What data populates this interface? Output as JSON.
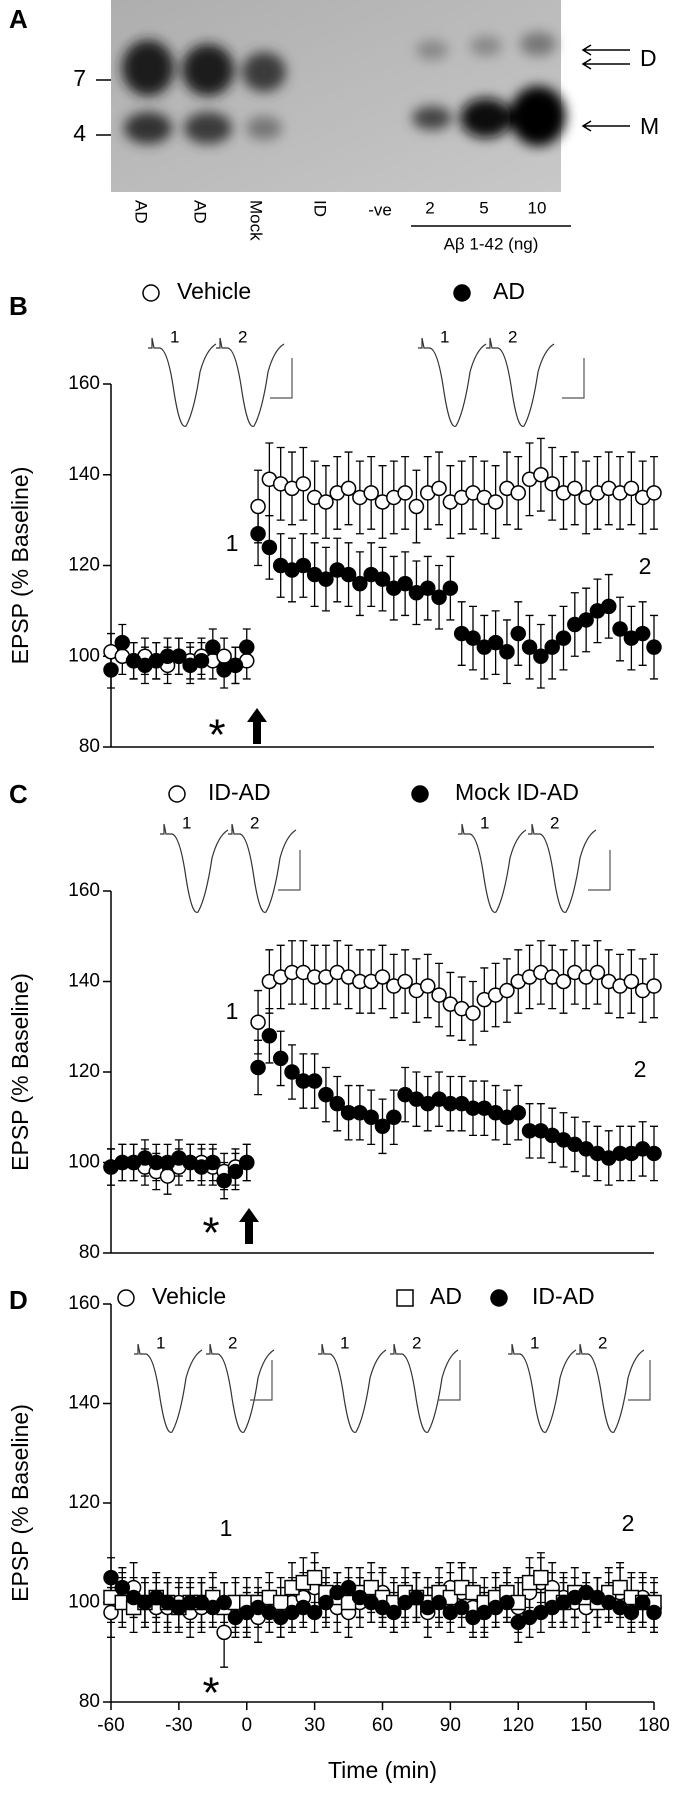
{
  "blot": {
    "panel": "A",
    "markers": [
      "7",
      "4"
    ],
    "bands": [
      "D",
      "M"
    ],
    "lanes": [
      "AD",
      "AD",
      "Mock",
      "ID",
      "-ve",
      "2",
      "5",
      "10"
    ],
    "lane_group": "Aβ 1-42 (ng)"
  },
  "chart_data": [
    {
      "type": "scatter",
      "panel": "B",
      "ylabel": "EPSP (% Baseline)",
      "ylim": [
        80,
        160
      ],
      "yticks": [
        80,
        100,
        120,
        140,
        160
      ],
      "xlim": [
        -60,
        180
      ],
      "trace_labels": [
        "1",
        "2",
        "1",
        "2"
      ],
      "annotations": [
        "1",
        "2"
      ],
      "marker_text": "*",
      "x": [
        -60,
        -55,
        -50,
        -45,
        -40,
        -35,
        -30,
        -25,
        -20,
        -15,
        -10,
        -5,
        0,
        5,
        10,
        15,
        20,
        25,
        30,
        35,
        40,
        45,
        50,
        55,
        60,
        65,
        70,
        75,
        80,
        85,
        90,
        95,
        100,
        105,
        110,
        115,
        120,
        125,
        130,
        135,
        140,
        145,
        150,
        155,
        160,
        165,
        170,
        175,
        180
      ],
      "series": [
        {
          "name": "Vehicle",
          "marker": "open-circle",
          "color": "#000000",
          "values": [
            101,
            100,
            99,
            100,
            99,
            98,
            100,
            99,
            100,
            99,
            100,
            98,
            99,
            133,
            139,
            138,
            137,
            138,
            135,
            134,
            136,
            137,
            135,
            136,
            134,
            135,
            136,
            133,
            136,
            137,
            134,
            135,
            136,
            135,
            134,
            137,
            136,
            139,
            140,
            138,
            136,
            137,
            135,
            136,
            137,
            136,
            137,
            135,
            136
          ],
          "errors": [
            4,
            4,
            4,
            4,
            4,
            4,
            4,
            4,
            4,
            4,
            4,
            4,
            4,
            8,
            8,
            8,
            8,
            8,
            8,
            8,
            8,
            8,
            8,
            8,
            8,
            8,
            8,
            8,
            8,
            8,
            8,
            8,
            8,
            8,
            8,
            8,
            8,
            8,
            8,
            8,
            8,
            8,
            8,
            8,
            8,
            8,
            8,
            8,
            8
          ]
        },
        {
          "name": "AD",
          "marker": "filled-circle",
          "color": "#000000",
          "values": [
            97,
            103,
            99,
            98,
            99,
            100,
            100,
            98,
            99,
            102,
            97,
            98,
            102,
            127,
            124,
            120,
            119,
            120,
            118,
            117,
            119,
            118,
            116,
            118,
            117,
            115,
            116,
            114,
            115,
            113,
            115,
            105,
            104,
            102,
            103,
            101,
            105,
            102,
            100,
            102,
            104,
            107,
            108,
            110,
            111,
            106,
            104,
            105,
            102
          ],
          "errors": [
            4,
            4,
            4,
            4,
            4,
            4,
            4,
            4,
            4,
            4,
            4,
            4,
            4,
            7,
            7,
            7,
            7,
            7,
            7,
            7,
            7,
            7,
            7,
            7,
            7,
            7,
            7,
            7,
            7,
            7,
            7,
            7,
            7,
            7,
            7,
            7,
            7,
            7,
            7,
            7,
            7,
            7,
            7,
            7,
            7,
            7,
            7,
            7,
            7
          ]
        }
      ]
    },
    {
      "type": "scatter",
      "panel": "C",
      "ylabel": "EPSP (% Baseline)",
      "ylim": [
        80,
        160
      ],
      "yticks": [
        80,
        100,
        120,
        140,
        160
      ],
      "xlim": [
        -60,
        180
      ],
      "trace_labels": [
        "1",
        "2",
        "1",
        "2"
      ],
      "annotations": [
        "1",
        "2"
      ],
      "marker_text": "*",
      "x": [
        -60,
        -55,
        -50,
        -45,
        -40,
        -35,
        -30,
        -25,
        -20,
        -15,
        -10,
        -5,
        0,
        5,
        10,
        15,
        20,
        25,
        30,
        35,
        40,
        45,
        50,
        55,
        60,
        65,
        70,
        75,
        80,
        85,
        90,
        95,
        100,
        105,
        110,
        115,
        120,
        125,
        130,
        135,
        140,
        145,
        150,
        155,
        160,
        165,
        170,
        175,
        180
      ],
      "series": [
        {
          "name": "ID-AD",
          "marker": "open-circle",
          "color": "#000000",
          "values": [
            99,
            100,
            100,
            99,
            98,
            97,
            99,
            100,
            100,
            99,
            98,
            99,
            100,
            131,
            140,
            141,
            142,
            142,
            141,
            141,
            142,
            141,
            140,
            140,
            141,
            139,
            140,
            138,
            139,
            137,
            135,
            134,
            133,
            136,
            137,
            138,
            140,
            141,
            142,
            141,
            140,
            142,
            141,
            142,
            140,
            139,
            140,
            138,
            139
          ],
          "errors": [
            4,
            4,
            4,
            4,
            4,
            4,
            4,
            4,
            4,
            4,
            4,
            4,
            4,
            7,
            7,
            7,
            7,
            7,
            7,
            7,
            7,
            7,
            7,
            7,
            7,
            7,
            7,
            7,
            7,
            7,
            7,
            7,
            7,
            7,
            7,
            7,
            7,
            7,
            7,
            7,
            7,
            7,
            7,
            7,
            7,
            7,
            7,
            7,
            7
          ]
        },
        {
          "name": "Mock ID-AD",
          "marker": "filled-circle",
          "color": "#000000",
          "values": [
            99,
            100,
            100,
            101,
            100,
            100,
            101,
            100,
            99,
            100,
            96,
            98,
            100,
            121,
            128,
            123,
            120,
            118,
            118,
            115,
            113,
            111,
            111,
            110,
            108,
            110,
            115,
            114,
            113,
            114,
            113,
            113,
            112,
            112,
            111,
            110,
            111,
            107,
            107,
            106,
            105,
            104,
            103,
            102,
            101,
            102,
            102,
            103,
            102
          ],
          "errors": [
            4,
            4,
            4,
            4,
            4,
            4,
            4,
            4,
            4,
            4,
            4,
            4,
            4,
            6,
            6,
            6,
            6,
            6,
            6,
            6,
            6,
            6,
            6,
            6,
            6,
            6,
            6,
            6,
            6,
            6,
            6,
            6,
            6,
            6,
            6,
            6,
            6,
            6,
            6,
            6,
            6,
            6,
            6,
            6,
            6,
            6,
            6,
            6,
            6
          ]
        }
      ]
    },
    {
      "type": "scatter",
      "panel": "D",
      "ylabel": "EPSP (% Baseline)",
      "xlabel": "Time (min)",
      "ylim": [
        80,
        160
      ],
      "yticks": [
        80,
        100,
        120,
        140,
        160
      ],
      "xlim": [
        -60,
        180
      ],
      "xticks": [
        -60,
        -30,
        0,
        30,
        60,
        90,
        120,
        150,
        180
      ],
      "trace_labels": [
        "1",
        "2",
        "1",
        "2",
        "1",
        "2"
      ],
      "annotations": [
        "1",
        "2"
      ],
      "marker_text": "*",
      "x": [
        -60,
        -55,
        -50,
        -45,
        -40,
        -35,
        -30,
        -25,
        -20,
        -15,
        -10,
        -5,
        0,
        5,
        10,
        15,
        20,
        25,
        30,
        35,
        40,
        45,
        50,
        55,
        60,
        65,
        70,
        75,
        80,
        85,
        90,
        95,
        100,
        105,
        110,
        115,
        120,
        125,
        130,
        135,
        140,
        145,
        150,
        155,
        160,
        165,
        170,
        175,
        180
      ],
      "series": [
        {
          "name": "Vehicle",
          "marker": "open-circle",
          "color": "#000000",
          "values": [
            98,
            101,
            103,
            100,
            99,
            99,
            100,
            98,
            99,
            100,
            94,
            99,
            98,
            97,
            99,
            98,
            100,
            101,
            103,
            100,
            99,
            98,
            100,
            101,
            102,
            99,
            100,
            101,
            98,
            100,
            103,
            102,
            99,
            98,
            100,
            101,
            99,
            102,
            104,
            103,
            101,
            100,
            99,
            100,
            101,
            102,
            100,
            101,
            99
          ],
          "errors": [
            5,
            5,
            5,
            5,
            5,
            5,
            5,
            5,
            5,
            5,
            7,
            5,
            5,
            5,
            5,
            5,
            5,
            5,
            5,
            5,
            5,
            5,
            5,
            5,
            5,
            5,
            5,
            5,
            5,
            5,
            5,
            5,
            5,
            5,
            5,
            5,
            5,
            5,
            5,
            5,
            5,
            5,
            5,
            5,
            5,
            5,
            5,
            5,
            5
          ]
        },
        {
          "name": "AD",
          "marker": "open-square",
          "color": "#000000",
          "values": [
            101,
            100,
            99,
            100,
            101,
            100,
            99,
            100,
            100,
            101,
            99,
            100,
            100,
            100,
            101,
            100,
            103,
            104,
            105,
            102,
            101,
            100,
            102,
            103,
            101,
            100,
            102,
            101,
            100,
            102,
            101,
            103,
            102,
            100,
            101,
            102,
            100,
            104,
            105,
            101,
            100,
            102,
            101,
            100,
            102,
            103,
            101,
            100,
            100
          ],
          "errors": [
            5,
            5,
            5,
            5,
            5,
            5,
            5,
            5,
            5,
            5,
            5,
            5,
            5,
            5,
            5,
            5,
            5,
            5,
            5,
            5,
            5,
            5,
            5,
            5,
            5,
            5,
            5,
            5,
            5,
            5,
            5,
            5,
            5,
            5,
            5,
            5,
            5,
            5,
            5,
            5,
            5,
            5,
            5,
            5,
            5,
            5,
            5,
            5,
            5
          ]
        },
        {
          "name": "ID-AD",
          "marker": "filled-circle",
          "color": "#000000",
          "values": [
            105,
            103,
            101,
            100,
            101,
            100,
            99,
            100,
            100,
            99,
            100,
            97,
            98,
            99,
            98,
            97,
            98,
            99,
            98,
            100,
            102,
            103,
            101,
            100,
            99,
            98,
            100,
            101,
            99,
            100,
            98,
            99,
            97,
            98,
            99,
            100,
            96,
            97,
            98,
            99,
            100,
            101,
            102,
            101,
            100,
            99,
            98,
            100,
            98
          ],
          "errors": [
            4,
            4,
            4,
            4,
            4,
            4,
            4,
            4,
            4,
            4,
            4,
            4,
            4,
            4,
            4,
            4,
            4,
            4,
            4,
            4,
            4,
            4,
            4,
            4,
            4,
            4,
            4,
            4,
            4,
            4,
            4,
            4,
            4,
            4,
            4,
            4,
            4,
            4,
            4,
            4,
            4,
            4,
            4,
            4,
            4,
            4,
            4,
            4,
            4
          ]
        }
      ]
    }
  ]
}
